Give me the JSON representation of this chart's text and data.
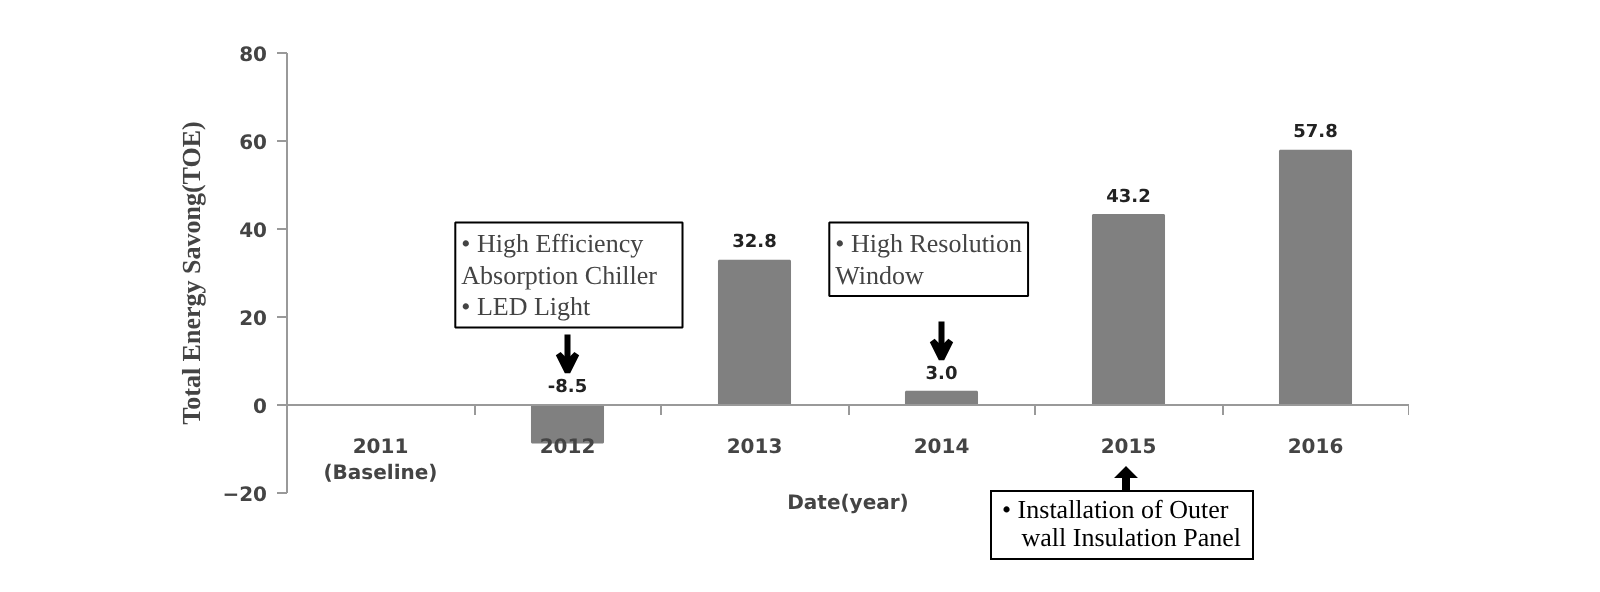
{
  "chart_data": {
    "type": "bar",
    "ylabel": "Total Energy Savong(TOE)",
    "xlabel": "Date(year)",
    "categories": [
      "2011\n(Baseline)",
      "2012",
      "2013",
      "2014",
      "2015",
      "2016"
    ],
    "values": [
      0,
      -8.5,
      32.8,
      3.0,
      43.2,
      57.8
    ],
    "value_labels": [
      null,
      "-8.5",
      "32.8",
      "3.0",
      "43.2",
      "57.8"
    ],
    "color": "#808080",
    "ylim": [
      -20,
      80
    ],
    "yticks": [
      -20,
      0,
      20,
      40,
      60,
      80
    ],
    "grid": false,
    "annotations": [
      "• High Efficiency\n   Absorption Chiller\n• LED Light",
      "• High Resolution\n   Window",
      "• Installation of Outer\n   wall Insulation Panel"
    ]
  }
}
